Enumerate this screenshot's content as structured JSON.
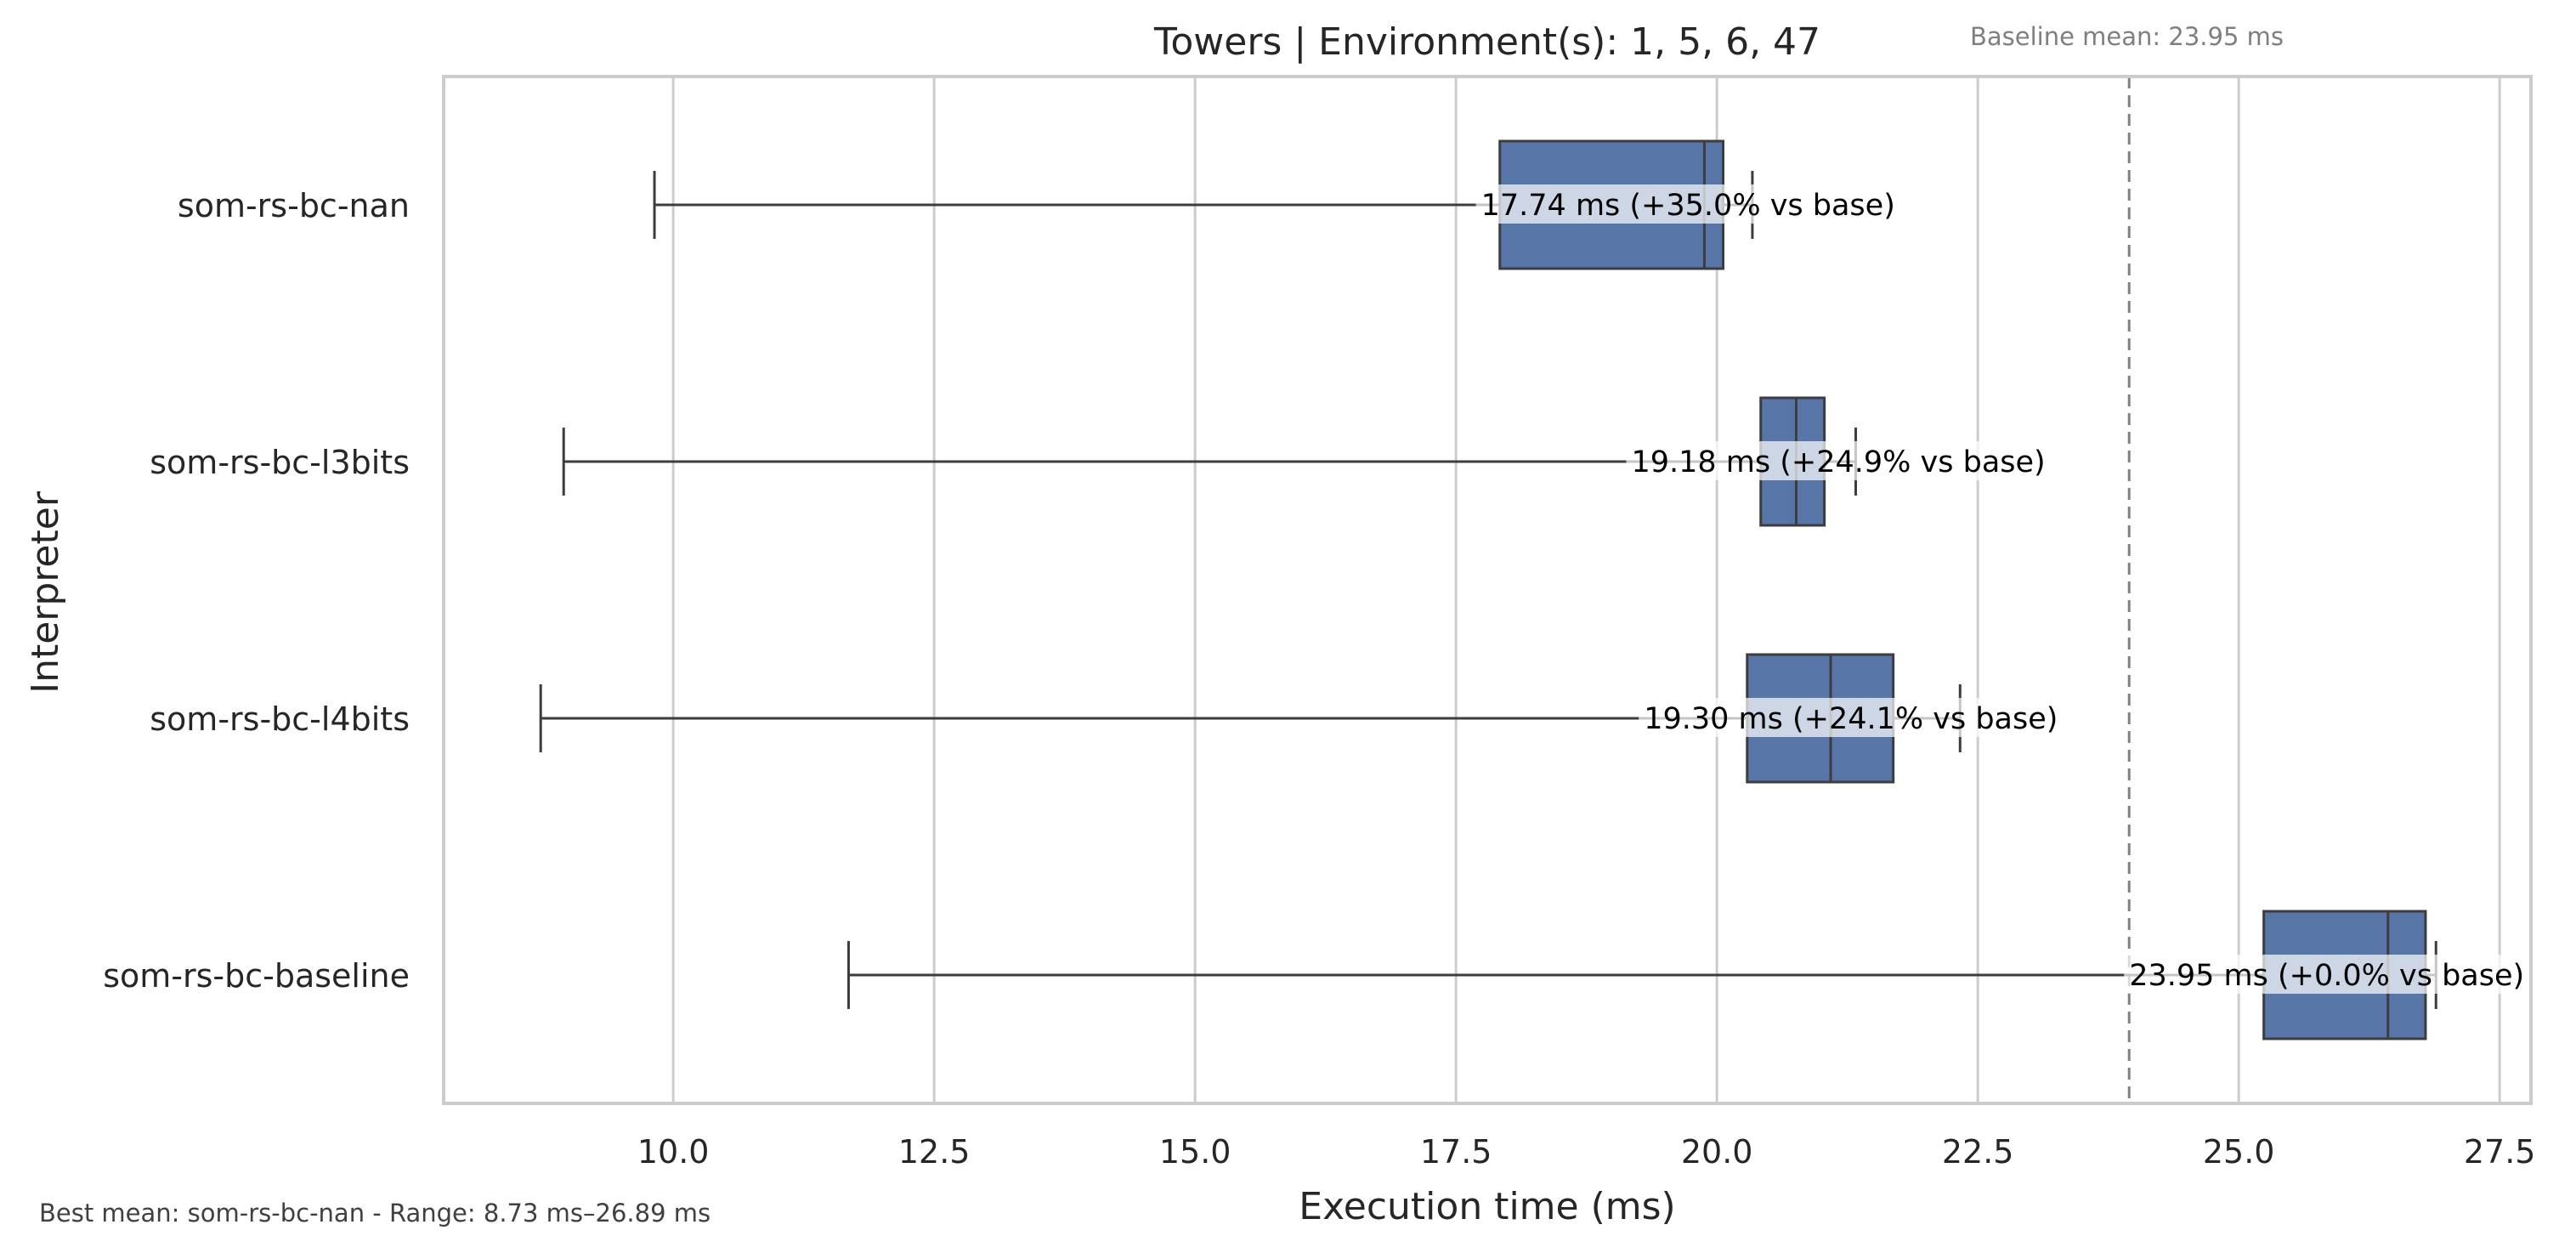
{
  "chart_data": {
    "type": "box",
    "title": "Towers | Environment(s): 1, 5, 6, 47",
    "xlabel": "Execution time (ms)",
    "ylabel": "Interpreter",
    "xlim": [
      7.8,
      27.8
    ],
    "xticks": [
      "10.0",
      "12.5",
      "15.0",
      "17.5",
      "20.0",
      "22.5",
      "25.0",
      "27.5"
    ],
    "grid": true,
    "baseline": {
      "value": 23.95,
      "label": "Baseline mean: 23.95 ms"
    },
    "footer": "Best mean: som-rs-bc-nan - Range: 8.73 ms–26.89 ms",
    "box_color": "#5875A8",
    "series": [
      {
        "name": "som-rs-bc-nan",
        "whisker_low": 9.82,
        "q1": 17.92,
        "median": 19.88,
        "q3": 20.06,
        "whisker_high": 20.34,
        "mean": 17.74,
        "label": "17.74 ms  (+35.0% vs base)"
      },
      {
        "name": "som-rs-bc-l3bits",
        "whisker_low": 8.95,
        "q1": 20.42,
        "median": 20.76,
        "q3": 21.03,
        "whisker_high": 21.33,
        "mean": 19.18,
        "label": "19.18 ms  (+24.9% vs base)"
      },
      {
        "name": "som-rs-bc-l4bits",
        "whisker_low": 8.73,
        "q1": 20.29,
        "median": 21.09,
        "q3": 21.69,
        "whisker_high": 22.33,
        "mean": 19.3,
        "label": "19.30 ms  (+24.1% vs base)"
      },
      {
        "name": "som-rs-bc-baseline",
        "whisker_low": 11.68,
        "q1": 25.24,
        "median": 26.43,
        "q3": 26.79,
        "whisker_high": 26.89,
        "mean": 23.95,
        "label": "23.95 ms  (+0.0% vs base)"
      }
    ]
  }
}
